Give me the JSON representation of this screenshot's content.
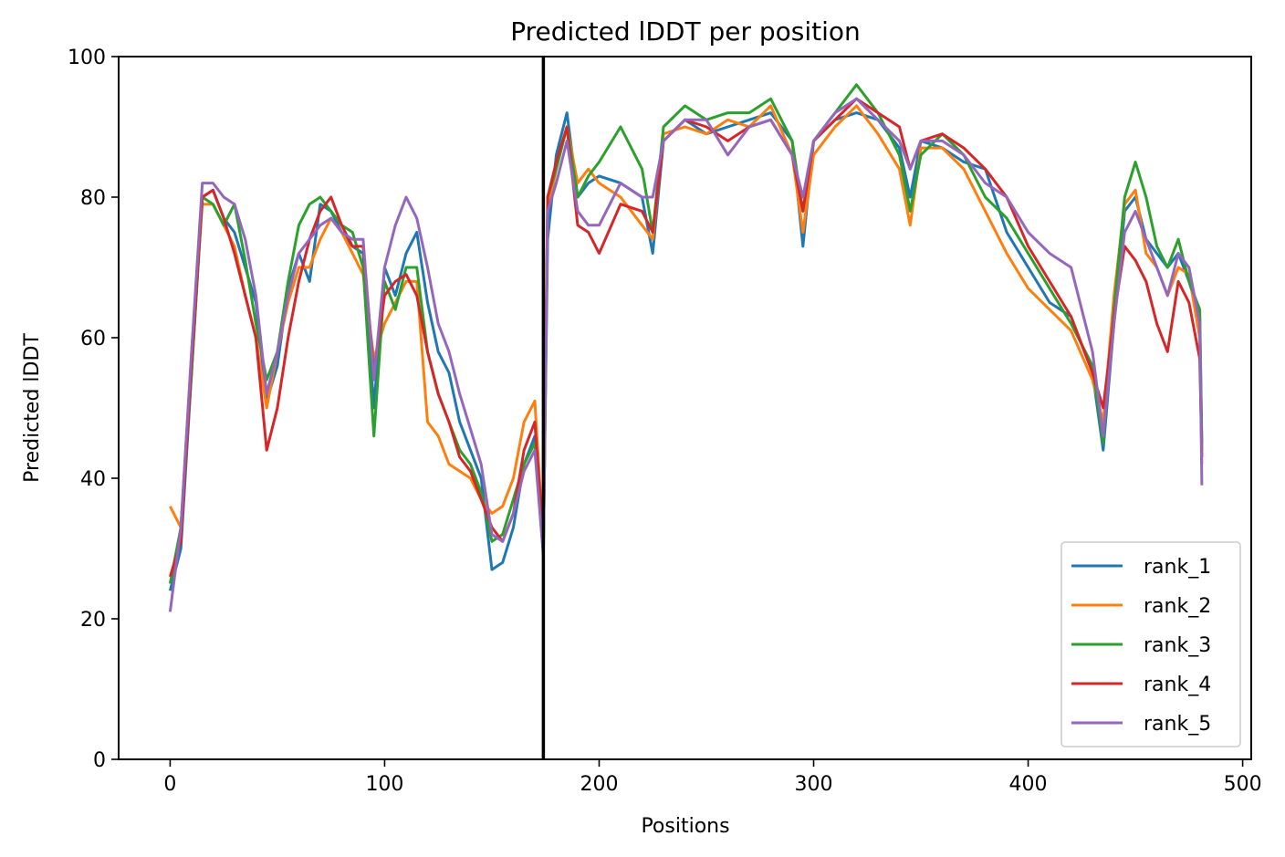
{
  "chart_data": {
    "type": "line",
    "title": "Predicted lDDT per position",
    "xlabel": "Positions",
    "ylabel": "Predicted lDDT",
    "xlim": [
      -24,
      504
    ],
    "ylim": [
      0,
      100
    ],
    "xticks": [
      0,
      100,
      200,
      300,
      400,
      500
    ],
    "yticks": [
      0,
      20,
      40,
      60,
      80,
      100
    ],
    "grid": false,
    "legend_position": "lower-right",
    "vertical_line_x": 174,
    "series": [
      {
        "name": "rank_1",
        "color": "#1f77b4",
        "x": [
          0,
          5,
          10,
          15,
          20,
          25,
          30,
          35,
          40,
          45,
          50,
          55,
          60,
          65,
          70,
          75,
          80,
          85,
          90,
          95,
          100,
          105,
          110,
          115,
          120,
          125,
          130,
          135,
          140,
          145,
          150,
          155,
          160,
          165,
          170,
          174,
          176,
          180,
          185,
          190,
          195,
          200,
          210,
          220,
          225,
          230,
          240,
          250,
          260,
          270,
          280,
          290,
          295,
          300,
          310,
          320,
          330,
          340,
          345,
          350,
          360,
          370,
          380,
          390,
          400,
          410,
          420,
          430,
          435,
          440,
          445,
          450,
          455,
          460,
          465,
          470,
          475,
          480,
          481
        ],
        "y": [
          24,
          30,
          55,
          80,
          81,
          77,
          75,
          70,
          65,
          51,
          56,
          67,
          72,
          68,
          79,
          78,
          75,
          73,
          72,
          50,
          70,
          66,
          72,
          75,
          65,
          58,
          55,
          48,
          44,
          40,
          27,
          28,
          33,
          42,
          46,
          30,
          74,
          86,
          92,
          80,
          82,
          83,
          82,
          80,
          72,
          88,
          91,
          89,
          90,
          91,
          92,
          88,
          73,
          88,
          91,
          92,
          91,
          87,
          80,
          88,
          87,
          85,
          84,
          75,
          70,
          65,
          63,
          55,
          44,
          62,
          78,
          80,
          74,
          72,
          70,
          72,
          68,
          63,
          44
        ]
      },
      {
        "name": "rank_2",
        "color": "#ff7f0e",
        "x": [
          0,
          5,
          10,
          15,
          20,
          25,
          30,
          35,
          40,
          45,
          50,
          55,
          60,
          65,
          70,
          75,
          80,
          85,
          90,
          95,
          100,
          105,
          110,
          115,
          120,
          125,
          130,
          135,
          140,
          145,
          150,
          155,
          160,
          165,
          170,
          174,
          176,
          180,
          185,
          190,
          195,
          200,
          210,
          220,
          225,
          230,
          240,
          250,
          260,
          270,
          280,
          290,
          295,
          300,
          310,
          320,
          330,
          340,
          345,
          350,
          360,
          370,
          380,
          390,
          400,
          410,
          420,
          430,
          435,
          440,
          445,
          450,
          455,
          460,
          465,
          470,
          475,
          480,
          481
        ],
        "y": [
          36,
          33,
          58,
          79,
          79,
          76,
          73,
          66,
          60,
          50,
          58,
          65,
          70,
          70,
          74,
          77,
          75,
          72,
          69,
          57,
          62,
          65,
          68,
          68,
          48,
          46,
          42,
          41,
          40,
          37,
          35,
          36,
          40,
          48,
          51,
          31,
          78,
          84,
          90,
          82,
          84,
          82,
          80,
          76,
          74,
          89,
          90,
          89,
          91,
          90,
          93,
          86,
          75,
          86,
          90,
          93,
          89,
          84,
          76,
          87,
          87,
          84,
          78,
          72,
          67,
          64,
          61,
          54,
          48,
          66,
          79,
          81,
          72,
          70,
          66,
          70,
          69,
          60,
          42
        ]
      },
      {
        "name": "rank_3",
        "color": "#2ca02c",
        "x": [
          0,
          5,
          10,
          15,
          20,
          25,
          30,
          35,
          40,
          45,
          50,
          55,
          60,
          65,
          70,
          75,
          80,
          85,
          90,
          95,
          100,
          105,
          110,
          115,
          120,
          125,
          130,
          135,
          140,
          145,
          150,
          155,
          160,
          165,
          170,
          174,
          176,
          180,
          185,
          190,
          195,
          200,
          210,
          220,
          225,
          230,
          240,
          250,
          260,
          270,
          280,
          290,
          295,
          300,
          310,
          320,
          330,
          340,
          345,
          350,
          360,
          370,
          380,
          390,
          400,
          410,
          420,
          430,
          435,
          440,
          445,
          450,
          455,
          460,
          465,
          470,
          475,
          480,
          481
        ],
        "y": [
          25,
          33,
          55,
          80,
          79,
          76,
          79,
          71,
          62,
          54,
          58,
          68,
          76,
          79,
          80,
          78,
          76,
          75,
          70,
          46,
          68,
          64,
          70,
          70,
          58,
          52,
          48,
          44,
          42,
          38,
          31,
          32,
          37,
          42,
          45,
          29,
          80,
          84,
          90,
          80,
          83,
          85,
          90,
          84,
          75,
          90,
          93,
          91,
          92,
          92,
          94,
          88,
          78,
          88,
          92,
          96,
          92,
          86,
          78,
          86,
          89,
          86,
          80,
          77,
          72,
          67,
          62,
          56,
          45,
          64,
          80,
          85,
          80,
          73,
          70,
          74,
          68,
          64,
          45
        ]
      },
      {
        "name": "rank_4",
        "color": "#d62728",
        "x": [
          0,
          5,
          10,
          15,
          20,
          25,
          30,
          35,
          40,
          45,
          50,
          55,
          60,
          65,
          70,
          75,
          80,
          85,
          90,
          95,
          100,
          105,
          110,
          115,
          120,
          125,
          130,
          135,
          140,
          145,
          150,
          155,
          160,
          165,
          170,
          174,
          176,
          180,
          185,
          190,
          195,
          200,
          210,
          220,
          225,
          230,
          240,
          250,
          260,
          270,
          280,
          290,
          295,
          300,
          310,
          320,
          330,
          340,
          345,
          350,
          360,
          370,
          380,
          390,
          400,
          410,
          420,
          430,
          435,
          440,
          445,
          450,
          455,
          460,
          465,
          470,
          475,
          480,
          481
        ],
        "y": [
          26,
          31,
          56,
          80,
          81,
          77,
          72,
          66,
          60,
          44,
          50,
          60,
          68,
          74,
          78,
          80,
          76,
          73,
          73,
          55,
          66,
          68,
          69,
          66,
          58,
          52,
          48,
          43,
          41,
          37,
          33,
          31,
          35,
          44,
          48,
          31,
          80,
          85,
          90,
          76,
          75,
          72,
          79,
          78,
          75,
          88,
          91,
          90,
          88,
          90,
          91,
          86,
          78,
          88,
          91,
          94,
          92,
          90,
          84,
          88,
          89,
          87,
          84,
          80,
          73,
          68,
          63,
          55,
          50,
          63,
          73,
          71,
          68,
          62,
          58,
          68,
          65,
          57,
          43
        ]
      },
      {
        "name": "rank_5",
        "color": "#9467bd",
        "x": [
          0,
          5,
          10,
          15,
          20,
          25,
          30,
          35,
          40,
          45,
          50,
          55,
          60,
          65,
          70,
          75,
          80,
          85,
          90,
          95,
          100,
          105,
          110,
          115,
          120,
          125,
          130,
          135,
          140,
          145,
          150,
          155,
          160,
          165,
          170,
          174,
          176,
          180,
          185,
          190,
          195,
          200,
          210,
          220,
          225,
          230,
          240,
          250,
          260,
          270,
          280,
          290,
          295,
          300,
          310,
          320,
          330,
          340,
          345,
          350,
          360,
          370,
          380,
          390,
          400,
          410,
          420,
          430,
          435,
          440,
          445,
          450,
          455,
          460,
          465,
          470,
          475,
          480,
          481
        ],
        "y": [
          21,
          33,
          58,
          82,
          82,
          80,
          79,
          74,
          66,
          52,
          58,
          66,
          72,
          74,
          76,
          77,
          75,
          74,
          74,
          54,
          70,
          76,
          80,
          77,
          70,
          62,
          58,
          52,
          47,
          42,
          32,
          31,
          35,
          41,
          44,
          29,
          78,
          82,
          88,
          78,
          76,
          76,
          82,
          80,
          80,
          88,
          91,
          91,
          86,
          90,
          91,
          86,
          80,
          88,
          92,
          94,
          91,
          88,
          84,
          88,
          88,
          86,
          82,
          80,
          75,
          72,
          70,
          58,
          46,
          62,
          75,
          78,
          74,
          70,
          66,
          72,
          70,
          62,
          39
        ]
      }
    ]
  }
}
